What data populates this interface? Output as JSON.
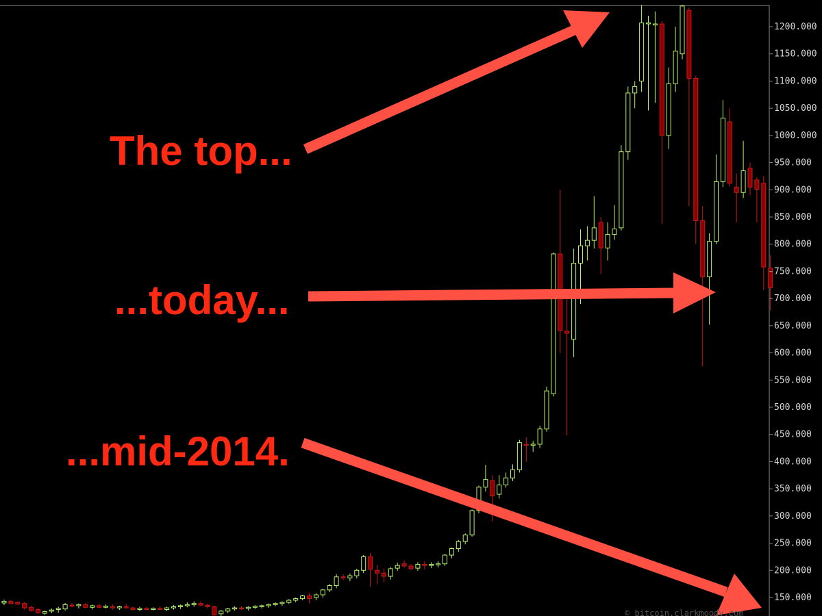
{
  "chart_data": {
    "type": "candlestick",
    "title": "",
    "xlabel": "",
    "ylabel": "",
    "ylim": [
      135,
      1250
    ],
    "y_ticks": [
      "150.000",
      "200.000",
      "250.000",
      "300.000",
      "350.000",
      "400.000",
      "450.000",
      "500.000",
      "550.000",
      "600.000",
      "650.000",
      "700.000",
      "750.000",
      "800.000",
      "850.000",
      "900.000",
      "950.000",
      "1000.000",
      "1050.000",
      "1100.000",
      "1150.000",
      "1200.000"
    ],
    "grid": false,
    "colors": {
      "up": "#b7f46b",
      "down": "#8b0000",
      "down_wick": "#c81a1a",
      "background": "#000000",
      "axis": "#8a8a8a"
    },
    "candles": [
      {
        "o": 140,
        "h": 146,
        "l": 136,
        "c": 143
      },
      {
        "o": 143,
        "h": 145,
        "l": 138,
        "c": 139
      },
      {
        "o": 141,
        "h": 143,
        "l": 136,
        "c": 138
      },
      {
        "o": 139,
        "h": 142,
        "l": 128,
        "c": 131
      },
      {
        "o": 132,
        "h": 135,
        "l": 124,
        "c": 126
      },
      {
        "o": 128,
        "h": 131,
        "l": 120,
        "c": 122
      },
      {
        "o": 121,
        "h": 126,
        "l": 118,
        "c": 124
      },
      {
        "o": 125,
        "h": 130,
        "l": 121,
        "c": 127
      },
      {
        "o": 128,
        "h": 133,
        "l": 122,
        "c": 130
      },
      {
        "o": 129,
        "h": 140,
        "l": 126,
        "c": 137
      },
      {
        "o": 136,
        "h": 140,
        "l": 132,
        "c": 134
      },
      {
        "o": 135,
        "h": 139,
        "l": 130,
        "c": 137
      },
      {
        "o": 137,
        "h": 140,
        "l": 130,
        "c": 132
      },
      {
        "o": 132,
        "h": 137,
        "l": 128,
        "c": 135
      },
      {
        "o": 135,
        "h": 139,
        "l": 130,
        "c": 132
      },
      {
        "o": 133,
        "h": 137,
        "l": 130,
        "c": 134
      },
      {
        "o": 133,
        "h": 137,
        "l": 128,
        "c": 131
      },
      {
        "o": 131,
        "h": 135,
        "l": 127,
        "c": 133
      },
      {
        "o": 133,
        "h": 138,
        "l": 130,
        "c": 131
      },
      {
        "o": 131,
        "h": 133,
        "l": 126,
        "c": 128
      },
      {
        "o": 128,
        "h": 133,
        "l": 125,
        "c": 130
      },
      {
        "o": 130,
        "h": 133,
        "l": 127,
        "c": 128
      },
      {
        "o": 128,
        "h": 132,
        "l": 126,
        "c": 130
      },
      {
        "o": 130,
        "h": 134,
        "l": 127,
        "c": 129
      },
      {
        "o": 128,
        "h": 133,
        "l": 125,
        "c": 131
      },
      {
        "o": 131,
        "h": 136,
        "l": 128,
        "c": 133
      },
      {
        "o": 133,
        "h": 137,
        "l": 129,
        "c": 135
      },
      {
        "o": 135,
        "h": 141,
        "l": 132,
        "c": 137
      },
      {
        "o": 137,
        "h": 143,
        "l": 133,
        "c": 139
      },
      {
        "o": 139,
        "h": 143,
        "l": 134,
        "c": 136
      },
      {
        "o": 136,
        "h": 139,
        "l": 130,
        "c": 133
      },
      {
        "o": 133,
        "h": 135,
        "l": 115,
        "c": 118
      },
      {
        "o": 120,
        "h": 127,
        "l": 112,
        "c": 125
      },
      {
        "o": 125,
        "h": 131,
        "l": 121,
        "c": 129
      },
      {
        "o": 129,
        "h": 134,
        "l": 126,
        "c": 131
      },
      {
        "o": 131,
        "h": 134,
        "l": 127,
        "c": 130
      },
      {
        "o": 130,
        "h": 134,
        "l": 126,
        "c": 132
      },
      {
        "o": 132,
        "h": 136,
        "l": 129,
        "c": 134
      },
      {
        "o": 134,
        "h": 137,
        "l": 130,
        "c": 135
      },
      {
        "o": 135,
        "h": 139,
        "l": 131,
        "c": 137
      },
      {
        "o": 137,
        "h": 141,
        "l": 134,
        "c": 139
      },
      {
        "o": 139,
        "h": 143,
        "l": 135,
        "c": 141
      },
      {
        "o": 141,
        "h": 147,
        "l": 138,
        "c": 145
      },
      {
        "o": 145,
        "h": 150,
        "l": 141,
        "c": 148
      },
      {
        "o": 148,
        "h": 155,
        "l": 145,
        "c": 153
      },
      {
        "o": 153,
        "h": 158,
        "l": 140,
        "c": 148
      },
      {
        "o": 150,
        "h": 158,
        "l": 145,
        "c": 155
      },
      {
        "o": 155,
        "h": 166,
        "l": 150,
        "c": 164
      },
      {
        "o": 164,
        "h": 175,
        "l": 160,
        "c": 172
      },
      {
        "o": 172,
        "h": 193,
        "l": 167,
        "c": 188
      },
      {
        "o": 188,
        "h": 193,
        "l": 182,
        "c": 186
      },
      {
        "o": 186,
        "h": 194,
        "l": 180,
        "c": 190
      },
      {
        "o": 190,
        "h": 203,
        "l": 185,
        "c": 200
      },
      {
        "o": 200,
        "h": 228,
        "l": 195,
        "c": 225
      },
      {
        "o": 225,
        "h": 232,
        "l": 170,
        "c": 202
      },
      {
        "o": 200,
        "h": 210,
        "l": 175,
        "c": 195
      },
      {
        "o": 195,
        "h": 203,
        "l": 178,
        "c": 189
      },
      {
        "o": 189,
        "h": 206,
        "l": 183,
        "c": 203
      },
      {
        "o": 204,
        "h": 214,
        "l": 199,
        "c": 209
      },
      {
        "o": 212,
        "h": 218,
        "l": 205,
        "c": 208
      },
      {
        "o": 208,
        "h": 212,
        "l": 200,
        "c": 203
      },
      {
        "o": 204,
        "h": 215,
        "l": 199,
        "c": 211
      },
      {
        "o": 211,
        "h": 216,
        "l": 202,
        "c": 209
      },
      {
        "o": 209,
        "h": 215,
        "l": 204,
        "c": 211
      },
      {
        "o": 211,
        "h": 217,
        "l": 205,
        "c": 212
      },
      {
        "o": 212,
        "h": 230,
        "l": 208,
        "c": 228
      },
      {
        "o": 228,
        "h": 242,
        "l": 222,
        "c": 240
      },
      {
        "o": 240,
        "h": 256,
        "l": 234,
        "c": 253
      },
      {
        "o": 253,
        "h": 268,
        "l": 248,
        "c": 265
      },
      {
        "o": 265,
        "h": 312,
        "l": 262,
        "c": 310
      },
      {
        "o": 310,
        "h": 356,
        "l": 305,
        "c": 353
      },
      {
        "o": 353,
        "h": 394,
        "l": 345,
        "c": 367
      },
      {
        "o": 365,
        "h": 375,
        "l": 290,
        "c": 337
      },
      {
        "o": 340,
        "h": 375,
        "l": 332,
        "c": 357
      },
      {
        "o": 357,
        "h": 380,
        "l": 352,
        "c": 370
      },
      {
        "o": 370,
        "h": 395,
        "l": 364,
        "c": 385
      },
      {
        "o": 385,
        "h": 440,
        "l": 380,
        "c": 435
      },
      {
        "o": 432,
        "h": 445,
        "l": 400,
        "c": 430
      },
      {
        "o": 430,
        "h": 438,
        "l": 418,
        "c": 432
      },
      {
        "o": 432,
        "h": 466,
        "l": 425,
        "c": 460
      },
      {
        "o": 460,
        "h": 538,
        "l": 455,
        "c": 530
      },
      {
        "o": 525,
        "h": 785,
        "l": 520,
        "c": 782
      },
      {
        "o": 782,
        "h": 900,
        "l": 600,
        "c": 641
      },
      {
        "o": 640,
        "h": 712,
        "l": 448,
        "c": 636
      },
      {
        "o": 625,
        "h": 792,
        "l": 592,
        "c": 765
      },
      {
        "o": 765,
        "h": 827,
        "l": 690,
        "c": 797
      },
      {
        "o": 797,
        "h": 833,
        "l": 770,
        "c": 807
      },
      {
        "o": 807,
        "h": 888,
        "l": 792,
        "c": 830
      },
      {
        "o": 840,
        "h": 850,
        "l": 745,
        "c": 793
      },
      {
        "o": 793,
        "h": 840,
        "l": 770,
        "c": 818
      },
      {
        "o": 818,
        "h": 872,
        "l": 808,
        "c": 828
      },
      {
        "o": 830,
        "h": 982,
        "l": 825,
        "c": 970
      },
      {
        "o": 970,
        "h": 1090,
        "l": 955,
        "c": 1078
      },
      {
        "o": 1078,
        "h": 1100,
        "l": 1050,
        "c": 1090
      },
      {
        "o": 1100,
        "h": 1240,
        "l": 1080,
        "c": 1207
      },
      {
        "o": 1207,
        "h": 1220,
        "l": 1046,
        "c": 1207
      },
      {
        "o": 1205,
        "h": 1228,
        "l": 1060,
        "c": 1205
      },
      {
        "o": 1205,
        "h": 1210,
        "l": 837,
        "c": 1000
      },
      {
        "o": 1000,
        "h": 1125,
        "l": 975,
        "c": 1095
      },
      {
        "o": 1095,
        "h": 1200,
        "l": 1080,
        "c": 1155
      },
      {
        "o": 1150,
        "h": 1240,
        "l": 1140,
        "c": 1238
      },
      {
        "o": 1230,
        "h": 1235,
        "l": 870,
        "c": 1105
      },
      {
        "o": 1105,
        "h": 1110,
        "l": 800,
        "c": 843
      },
      {
        "o": 843,
        "h": 870,
        "l": 575,
        "c": 740
      },
      {
        "o": 740,
        "h": 820,
        "l": 652,
        "c": 805
      },
      {
        "o": 805,
        "h": 965,
        "l": 800,
        "c": 915
      },
      {
        "o": 915,
        "h": 1065,
        "l": 905,
        "c": 1032
      },
      {
        "o": 1025,
        "h": 1050,
        "l": 906,
        "c": 912
      },
      {
        "o": 905,
        "h": 930,
        "l": 840,
        "c": 895
      },
      {
        "o": 895,
        "h": 990,
        "l": 885,
        "c": 935
      },
      {
        "o": 940,
        "h": 950,
        "l": 890,
        "c": 905
      },
      {
        "o": 918,
        "h": 923,
        "l": 840,
        "c": 901
      },
      {
        "o": 912,
        "h": 925,
        "l": 715,
        "c": 758
      },
      {
        "o": 756,
        "h": 780,
        "l": 678,
        "c": 720
      }
    ],
    "annotations": [
      "The top...",
      "...today...",
      "...mid-2014."
    ],
    "watermark": "© bitcoin.clarkmoody.com"
  }
}
